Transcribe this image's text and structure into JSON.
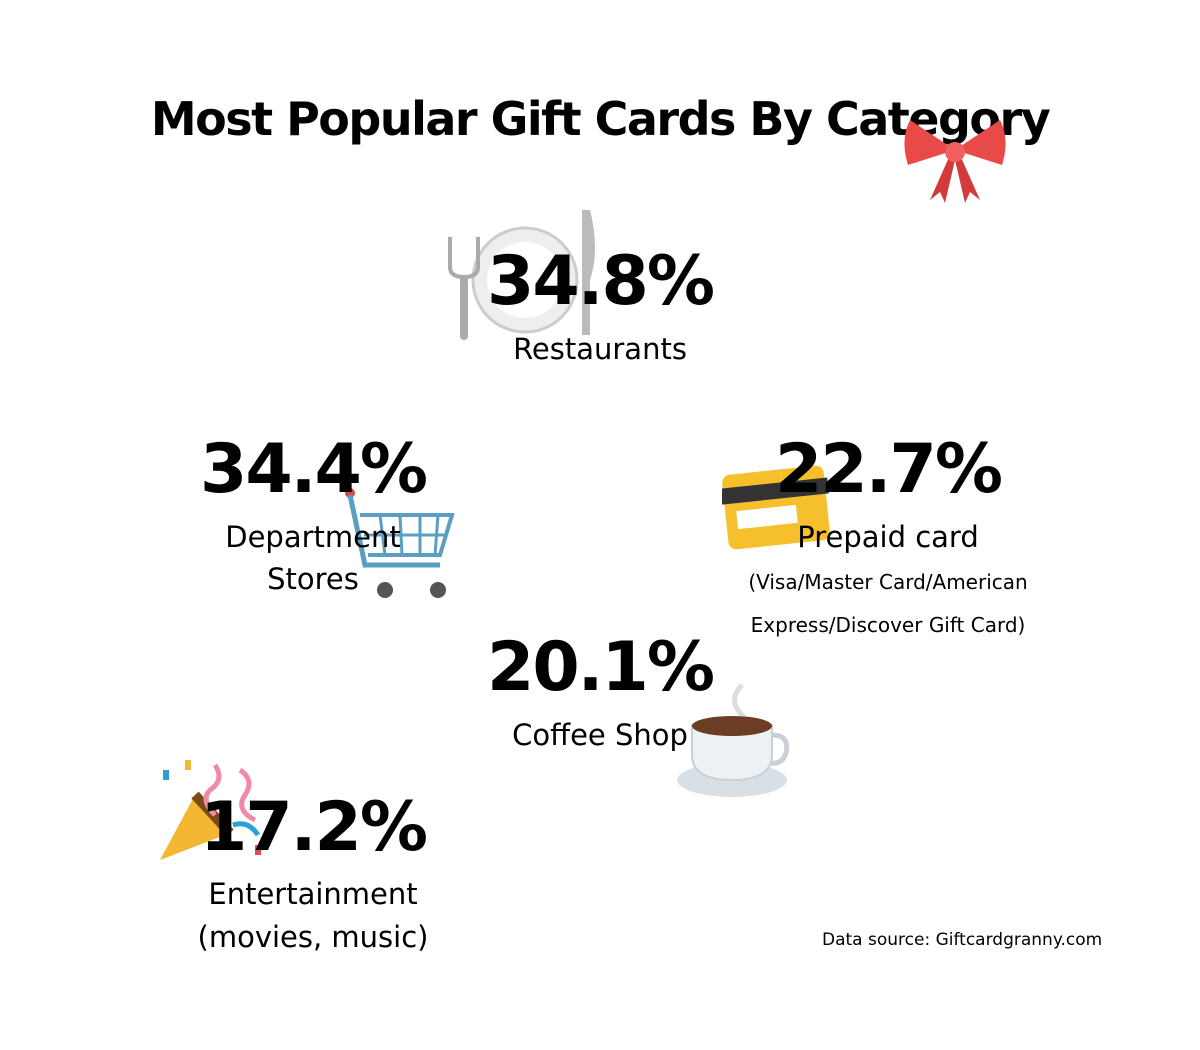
{
  "title": "Most Popular Gift Cards By Category",
  "stats": [
    {
      "value": "34.8%",
      "label": [
        "Restaurants"
      ]
    },
    {
      "value": "34.4%",
      "label": [
        "Department",
        "Stores"
      ]
    },
    {
      "value": "22.7%",
      "label": [
        "Prepaid card"
      ],
      "note": [
        "(Visa/Master Card/American",
        "Express/Discover Gift Card)"
      ]
    },
    {
      "value": "20.1%",
      "label": [
        "Coffee Shop"
      ]
    },
    {
      "value": "17.2%",
      "label": [
        "Entertainment",
        "(movies, music)"
      ]
    }
  ],
  "source": "Data source: Giftcardgranny.com"
}
